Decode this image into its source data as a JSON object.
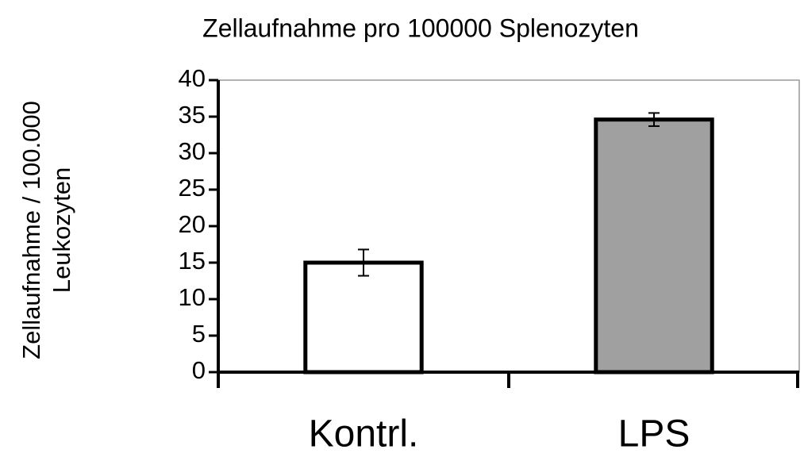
{
  "chart_data": {
    "type": "bar",
    "title": "Zellaufnahme pro 100000 Splenozyten",
    "ylabel": [
      "Zellaufnahme / 100.000",
      "Leukozyten"
    ],
    "categories": [
      "Kontrl.",
      "LPS"
    ],
    "values": [
      15,
      34.6
    ],
    "errors": [
      1.8,
      0.9
    ],
    "colors": [
      "#ffffff",
      "#a0a0a0"
    ],
    "ylim": [
      0,
      40
    ],
    "yticks": [
      0,
      5,
      10,
      15,
      20,
      25,
      30,
      35,
      40
    ]
  }
}
